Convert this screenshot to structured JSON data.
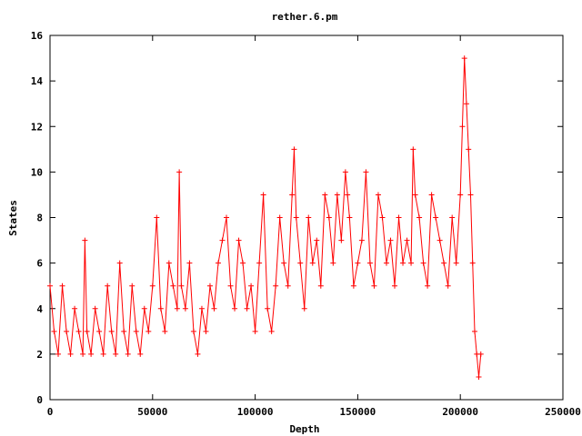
{
  "chart_data": {
    "type": "line",
    "title": "rether.6.pm",
    "xlabel": "Depth",
    "ylabel": "States",
    "xlim": [
      0,
      250000
    ],
    "ylim": [
      0,
      16
    ],
    "xticks": [
      0,
      50000,
      100000,
      150000,
      200000,
      250000
    ],
    "yticks": [
      0,
      2,
      4,
      6,
      8,
      10,
      12,
      14,
      16
    ],
    "xtick_labels": [
      "0",
      "50000",
      "100000",
      "150000",
      "200000",
      "250000"
    ],
    "ytick_labels": [
      "0",
      "2",
      "4",
      "6",
      "8",
      "10",
      "12",
      "14",
      "16"
    ],
    "grid": false,
    "legend": "none",
    "point_style": "plus",
    "series": [
      {
        "color": "#ff0000",
        "x": [
          0,
          2000,
          4000,
          6000,
          8000,
          10000,
          12000,
          14000,
          16000,
          17000,
          18000,
          20000,
          22000,
          24000,
          26000,
          28000,
          30000,
          32000,
          34000,
          36000,
          38000,
          40000,
          42000,
          44000,
          46000,
          48000,
          50000,
          52000,
          54000,
          56000,
          58000,
          60000,
          62000,
          63000,
          64000,
          66000,
          68000,
          70000,
          72000,
          74000,
          76000,
          78000,
          80000,
          82000,
          84000,
          86000,
          88000,
          90000,
          92000,
          94000,
          96000,
          98000,
          100000,
          102000,
          104000,
          106000,
          108000,
          110000,
          112000,
          114000,
          116000,
          118000,
          119000,
          120000,
          122000,
          124000,
          126000,
          128000,
          130000,
          132000,
          134000,
          136000,
          138000,
          140000,
          142000,
          144000,
          145000,
          146000,
          148000,
          150000,
          152000,
          154000,
          156000,
          158000,
          160000,
          162000,
          164000,
          166000,
          168000,
          170000,
          172000,
          174000,
          176000,
          177000,
          178000,
          180000,
          182000,
          184000,
          186000,
          188000,
          190000,
          192000,
          194000,
          196000,
          198000,
          200000,
          201000,
          202000,
          203000,
          204000,
          205000,
          206000,
          207000,
          208000,
          209000,
          210000
        ],
        "y": [
          5,
          3,
          2,
          5,
          3,
          2,
          4,
          3,
          2,
          7,
          3,
          2,
          4,
          3,
          2,
          5,
          3,
          2,
          6,
          3,
          2,
          5,
          3,
          2,
          4,
          3,
          5,
          8,
          4,
          3,
          6,
          5,
          4,
          10,
          5,
          4,
          6,
          3,
          2,
          4,
          3,
          5,
          4,
          6,
          7,
          8,
          5,
          4,
          7,
          6,
          4,
          5,
          3,
          6,
          9,
          4,
          3,
          5,
          8,
          6,
          5,
          9,
          11,
          8,
          6,
          4,
          8,
          6,
          7,
          5,
          9,
          8,
          6,
          9,
          7,
          10,
          9,
          8,
          5,
          6,
          7,
          10,
          6,
          5,
          9,
          8,
          6,
          7,
          5,
          8,
          6,
          7,
          6,
          11,
          9,
          8,
          6,
          5,
          9,
          8,
          7,
          6,
          5,
          8,
          6,
          9,
          12,
          15,
          13,
          11,
          9,
          6,
          3,
          2,
          1,
          2
        ]
      }
    ]
  }
}
